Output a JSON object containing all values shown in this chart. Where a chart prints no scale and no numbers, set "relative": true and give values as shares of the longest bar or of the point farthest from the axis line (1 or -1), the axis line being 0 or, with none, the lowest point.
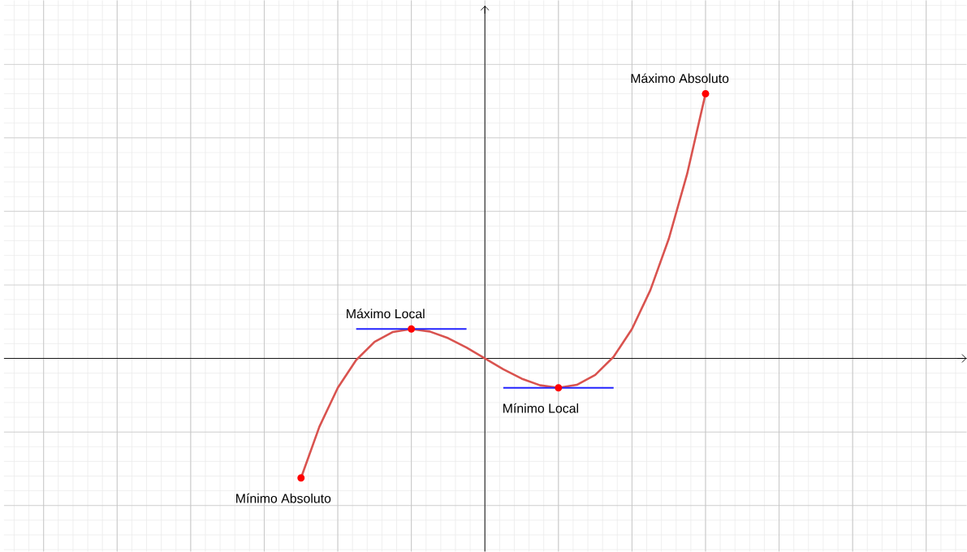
{
  "chart_data": {
    "type": "line",
    "relative": true,
    "grid": true,
    "categories": [
      null,
      null,
      null,
      null,
      null,
      null,
      null,
      null,
      null,
      null,
      null,
      null,
      null,
      null,
      null,
      null,
      null,
      null,
      null,
      null,
      null,
      null,
      null
    ],
    "series": [
      {
        "color": "#d9534f",
        "values": [
          -0.4514,
          -0.2578,
          -0.1111,
          -0.0061,
          0.0625,
          0.0998,
          0.1111,
          0.1016,
          0.0764,
          0.0408,
          0,
          -0.0408,
          -0.0764,
          -0.1016,
          -0.1111,
          -0.0998,
          -0.0625,
          0.0061,
          0.1111,
          0.2578,
          0.4514,
          0.697,
          1
        ]
      }
    ],
    "annotations": [
      "Mínimo Absoluto",
      "Máximo Local",
      "Mínimo Local",
      "Máximo Absoluto"
    ]
  }
}
